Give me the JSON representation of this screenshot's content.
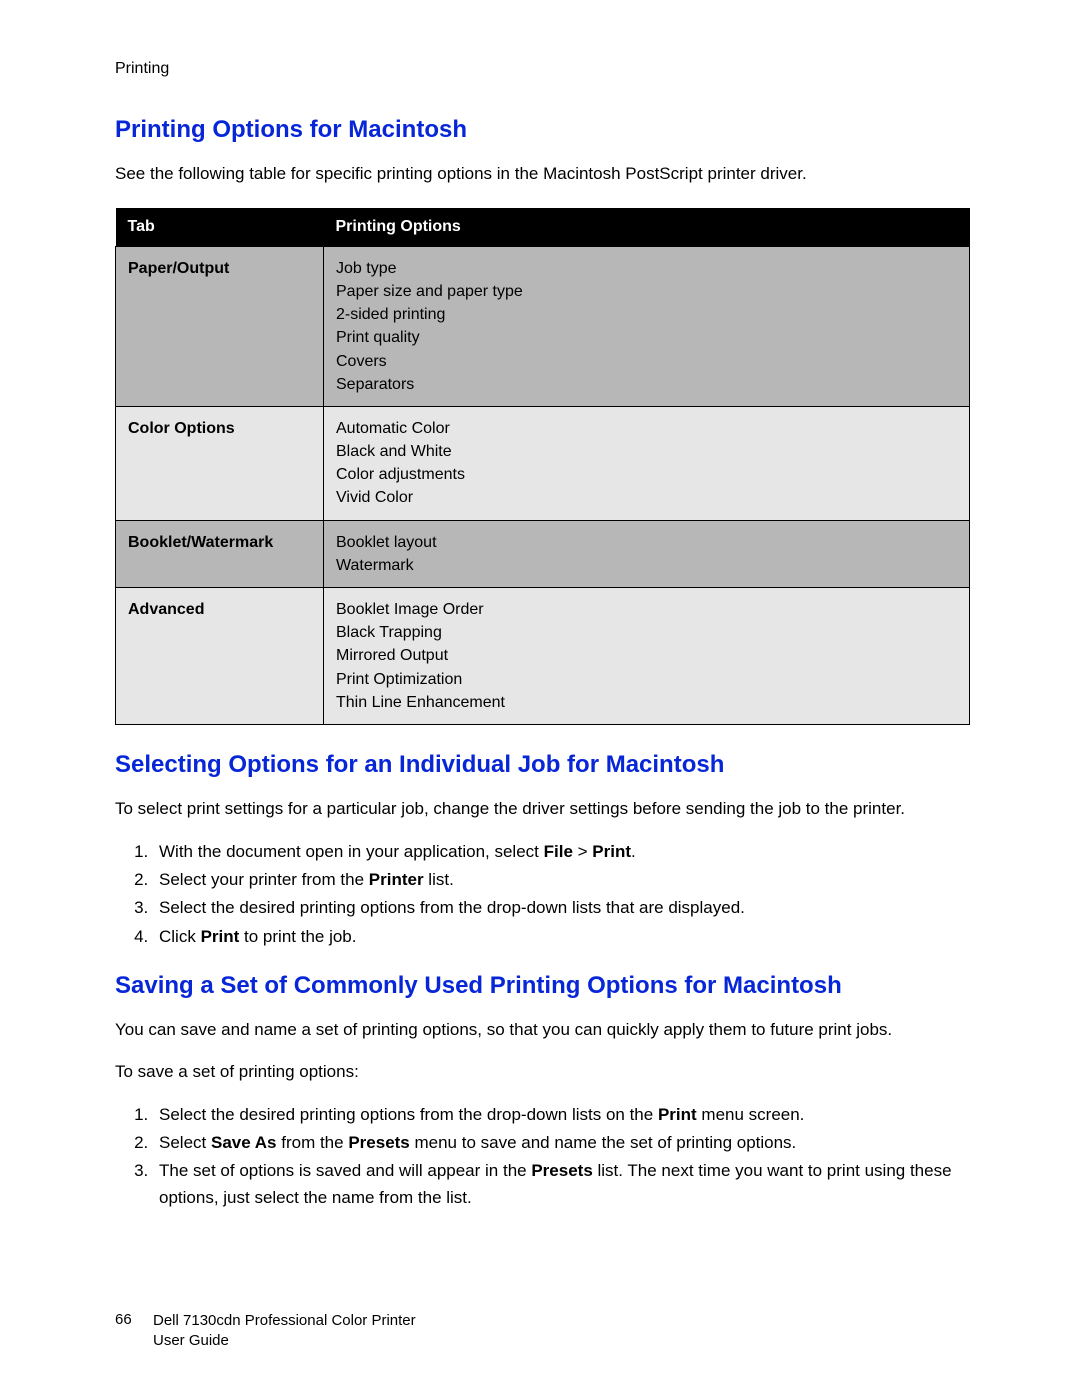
{
  "section_tag": "Printing",
  "h1": "Printing Options for Macintosh",
  "intro": "See the following table for specific printing options in the Macintosh PostScript printer driver.",
  "table": {
    "head": {
      "c1": "Tab",
      "c2": "Printing Options"
    },
    "rows": [
      {
        "shade": "dark",
        "tab": "Paper/Output",
        "opts": "Job type\nPaper size and paper type\n2-sided printing\nPrint quality\nCovers\nSeparators"
      },
      {
        "shade": "light",
        "tab": "Color Options",
        "opts": "Automatic Color\nBlack and White\nColor adjustments\nVivid Color"
      },
      {
        "shade": "dark",
        "tab": "Booklet/Watermark",
        "opts": "Booklet layout\nWatermark"
      },
      {
        "shade": "light",
        "tab": "Advanced",
        "opts": "Booklet Image Order\nBlack Trapping\nMirrored Output\nPrint Optimization\nThin Line Enhancement"
      }
    ]
  },
  "h2": "Selecting Options for an Individual Job for Macintosh",
  "sel_intro": "To select print settings for a particular job, change the driver settings before sending the job to the printer.",
  "sel_steps": [
    "With the document open in your application, select <b>File</b> > <b>Print</b>.",
    "Select your printer from the <b>Printer</b> list.",
    "Select the desired printing options from the drop-down lists that are displayed.",
    "Click <b>Print</b> to print the job."
  ],
  "h3": "Saving a Set of Commonly Used Printing Options for Macintosh",
  "save_intro": "You can save and name a set of printing options, so that you can quickly apply them to future print jobs.",
  "save_lead": "To save a set of printing options:",
  "save_steps": [
    "Select the desired printing options from the drop-down lists on the <b>Print</b> menu screen.",
    "Select <b>Save As</b> from the <b>Presets</b> menu to save and name the set of printing options.",
    "The set of options is saved and will appear in the <b>Presets</b> list. The next time you want to print using these options, just select the name from the list."
  ],
  "footer": {
    "page": "66",
    "text": "Dell 7130cdn Professional Color Printer\nUser Guide"
  },
  "colors": {
    "heading_blue": "#0726d8",
    "table_dark": "#b7b7b7",
    "table_light": "#e6e6e6",
    "header_bg": "#000000",
    "header_fg": "#ffffff"
  }
}
